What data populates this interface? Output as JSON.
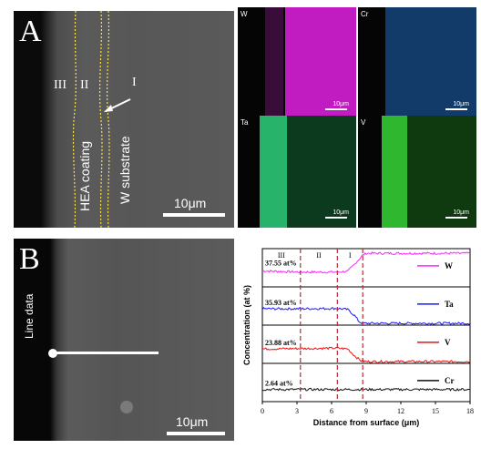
{
  "panelA": {
    "letter": "A",
    "regions": [
      "III",
      "II",
      "I"
    ],
    "coating_label": "HEA coating",
    "substrate_label": "W substrate",
    "scale": "10μm",
    "maps": [
      {
        "element": "W",
        "color": "#d21fd2",
        "scale": "10μm"
      },
      {
        "element": "Cr",
        "color": "#2a8bd8",
        "scale": "10μm"
      },
      {
        "element": "Ta",
        "color": "#33d07a",
        "scale": "10μm"
      },
      {
        "element": "V",
        "color": "#36c43a",
        "scale": "10μm"
      }
    ]
  },
  "panelB": {
    "letter": "B",
    "line_label": "Line data",
    "scale": "10μm"
  },
  "chart_data": {
    "type": "line",
    "xlabel": "Distance from surface (μm)",
    "ylabel": "Concentration (at %)",
    "xlim": [
      0,
      18
    ],
    "xticks": [
      0,
      3,
      6,
      9,
      12,
      15,
      18
    ],
    "region_labels": [
      "III",
      "II",
      "I"
    ],
    "region_boundaries": [
      3.3,
      6.5,
      8.7
    ],
    "series": [
      {
        "name": "W",
        "color": "#ff22ff",
        "annotation": "37.55 at%",
        "baseline": 0.34,
        "x": [
          0,
          3.3,
          6.5,
          7.4,
          8.0,
          8.7,
          9.0,
          18
        ],
        "y": [
          0.37,
          0.34,
          0.34,
          0.36,
          0.55,
          0.78,
          0.83,
          0.83
        ]
      },
      {
        "name": "Ta",
        "color": "#1a1aff",
        "annotation": "35.93 at%",
        "baseline": 0.0,
        "x": [
          0,
          3.3,
          6.5,
          7.4,
          8.0,
          8.4,
          8.7,
          18
        ],
        "y": [
          0.38,
          0.38,
          0.39,
          0.36,
          0.2,
          0.04,
          0.0,
          0.0
        ]
      },
      {
        "name": "V",
        "color": "#e81414",
        "annotation": "23.88 at%",
        "baseline": 0.0,
        "x": [
          0,
          3.3,
          6.5,
          7.4,
          8.0,
          8.5,
          9.0,
          18
        ],
        "y": [
          0.33,
          0.34,
          0.35,
          0.33,
          0.15,
          0.03,
          0.0,
          0.0
        ]
      },
      {
        "name": "Cr",
        "color": "#111111",
        "annotation": "2.64 at%",
        "baseline": 0.0,
        "x": [
          0,
          9,
          18
        ],
        "y": [
          0.27,
          0.27,
          0.27
        ]
      }
    ]
  }
}
